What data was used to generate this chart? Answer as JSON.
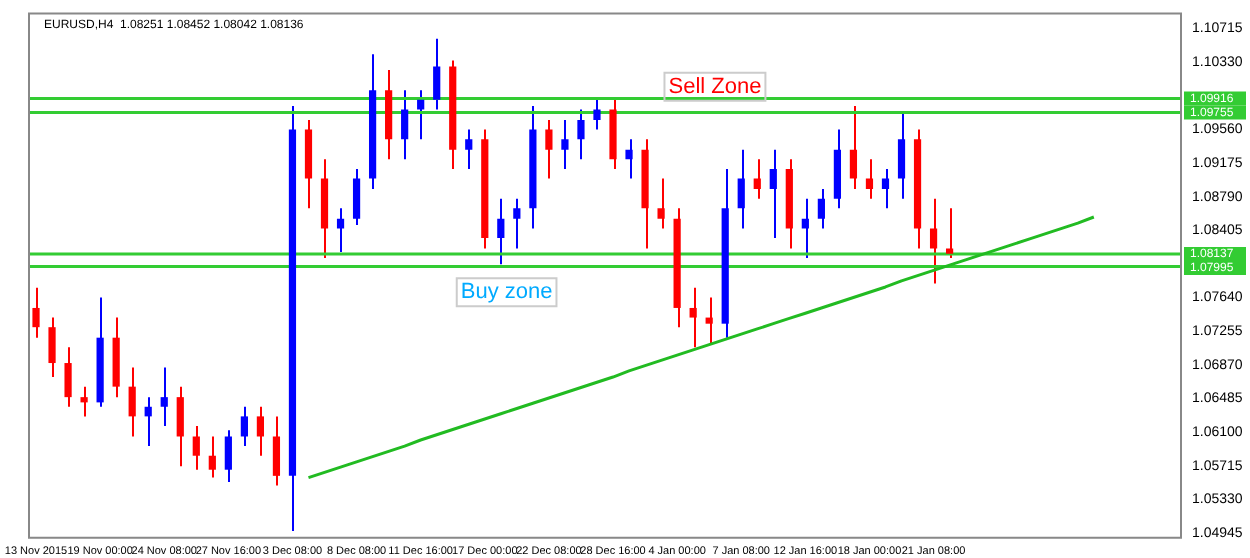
{
  "chart_data": {
    "type": "candlestick",
    "title": "EURUSD,H4  1.08251 1.08452 1.08042 1.08136",
    "categories": [
      "13 Nov 2015",
      null,
      null,
      null,
      "19 Nov 00:00",
      null,
      null,
      null,
      "24 Nov 08:00",
      null,
      null,
      null,
      "27 Nov 16:00",
      null,
      null,
      null,
      "3 Dec 08:00",
      null,
      null,
      null,
      "8 Dec 08:00",
      null,
      null,
      null,
      "11 Dec 16:00",
      null,
      null,
      null,
      "17 Dec 00:00",
      null,
      null,
      null,
      "22 Dec 08:00",
      null,
      null,
      null,
      "28 Dec 16:00",
      null,
      null,
      null,
      "4 Jan 00:00",
      null,
      null,
      null,
      "7 Jan 08:00",
      null,
      null,
      null,
      "12 Jan 16:00",
      null,
      null,
      null,
      "18 Jan 00:00",
      null,
      null,
      null,
      "21 Jan 08:00",
      null,
      null,
      null,
      null,
      null,
      null,
      null,
      null,
      null,
      null,
      null,
      null,
      null,
      null,
      null
    ],
    "series": [
      {
        "type": "candlestick",
        "ohlc": [
          [
            1.0752,
            1.0775,
            1.0718,
            1.073
          ],
          [
            1.073,
            1.0741,
            1.0673,
            1.0689
          ],
          [
            1.0689,
            1.0707,
            1.0639,
            1.065
          ],
          [
            1.065,
            1.0662,
            1.0628,
            1.0644
          ],
          [
            1.0644,
            1.0764,
            1.0639,
            1.0718
          ],
          [
            1.0718,
            1.0741,
            1.065,
            1.0662
          ],
          [
            1.0662,
            1.0684,
            1.0605,
            1.0628
          ],
          [
            1.0628,
            1.065,
            1.0594,
            1.0639
          ],
          [
            1.0639,
            1.0684,
            1.0617,
            1.065
          ],
          [
            1.065,
            1.0662,
            1.0571,
            1.0605
          ],
          [
            1.0605,
            1.0617,
            1.0567,
            1.0583
          ],
          [
            1.0583,
            1.0605,
            1.0558,
            1.0567
          ],
          [
            1.0567,
            1.0612,
            1.0553,
            1.0605
          ],
          [
            1.0605,
            1.0639,
            1.0594,
            1.0628
          ],
          [
            1.0628,
            1.0639,
            1.0583,
            1.0605
          ],
          [
            1.0605,
            1.0628,
            1.0549,
            1.056
          ],
          [
            1.056,
            1.0983,
            1.0497,
            1.0956
          ],
          [
            1.0956,
            1.0967,
            1.0866,
            1.09
          ],
          [
            1.09,
            1.0922,
            1.0809,
            1.0843
          ],
          [
            1.0843,
            1.0866,
            1.0816,
            1.0854
          ],
          [
            1.0854,
            1.0911,
            1.0847,
            1.09
          ],
          [
            1.09,
            1.1042,
            1.0888,
            1.1001
          ],
          [
            1.1001,
            1.1024,
            1.0922,
            1.0945
          ],
          [
            1.0945,
            1.1001,
            1.0922,
            1.0979
          ],
          [
            1.0979,
            1.1001,
            1.0945,
            1.099
          ],
          [
            1.099,
            1.106,
            1.0979,
            1.1028
          ],
          [
            1.1028,
            1.1035,
            1.0911,
            1.0933
          ],
          [
            1.0933,
            1.0956,
            1.0911,
            1.0945
          ],
          [
            1.0945,
            1.0956,
            1.082,
            1.0832
          ],
          [
            1.0832,
            1.0877,
            1.0802,
            1.0854
          ],
          [
            1.0854,
            1.0877,
            1.082,
            1.0866
          ],
          [
            1.0866,
            1.0983,
            1.0843,
            1.0956
          ],
          [
            1.0956,
            1.0967,
            1.09,
            1.0933
          ],
          [
            1.0933,
            1.0967,
            1.0911,
            1.0945
          ],
          [
            1.0945,
            1.0979,
            1.0922,
            1.0967
          ],
          [
            1.0967,
            1.099,
            1.0956,
            1.0979
          ],
          [
            1.0979,
            1.099,
            1.0911,
            1.0922
          ],
          [
            1.0922,
            1.0945,
            1.09,
            1.0933
          ],
          [
            1.0933,
            1.0945,
            1.082,
            1.0866
          ],
          [
            1.0866,
            1.09,
            1.0843,
            1.0854
          ],
          [
            1.0854,
            1.0866,
            1.073,
            1.0752
          ],
          [
            1.0752,
            1.0775,
            1.0707,
            1.0741
          ],
          [
            1.0741,
            1.0764,
            1.0712,
            1.0734
          ],
          [
            1.0734,
            1.0911,
            1.0718,
            1.0866
          ],
          [
            1.0866,
            1.0933,
            1.0843,
            1.09
          ],
          [
            1.09,
            1.0922,
            1.0877,
            1.0888
          ],
          [
            1.0888,
            1.0933,
            1.0832,
            1.0911
          ],
          [
            1.0911,
            1.0922,
            1.082,
            1.0843
          ],
          [
            1.0843,
            1.0877,
            1.0809,
            1.0854
          ],
          [
            1.0854,
            1.0888,
            1.0843,
            1.0877
          ],
          [
            1.0877,
            1.0956,
            1.0866,
            1.0933
          ],
          [
            1.0933,
            1.0983,
            1.0888,
            1.09
          ],
          [
            1.09,
            1.0922,
            1.0877,
            1.0888
          ],
          [
            1.0888,
            1.0911,
            1.0866,
            1.09
          ],
          [
            1.09,
            1.0974,
            1.0877,
            1.0945
          ],
          [
            1.0945,
            1.0956,
            1.082,
            1.0843
          ],
          [
            1.0843,
            1.0877,
            1.078,
            1.082
          ],
          [
            1.082,
            1.0866,
            1.0809,
            1.0814
          ],
          null,
          null,
          null,
          null,
          null,
          null,
          null,
          null,
          null,
          null,
          null,
          null,
          null,
          null
        ],
        "colors": [
          "#ff0000",
          "#ff0000",
          "#ff0000",
          "#ff0000",
          "#0000ff",
          "#ff0000",
          "#ff0000",
          "#0000ff",
          "#0000ff",
          "#ff0000",
          "#ff0000",
          "#ff0000",
          "#0000ff",
          "#0000ff",
          "#ff0000",
          "#ff0000",
          "#0000ff",
          "#ff0000",
          "#ff0000",
          "#0000ff",
          "#0000ff",
          "#0000ff",
          "#ff0000",
          "#0000ff",
          "#0000ff",
          "#0000ff",
          "#ff0000",
          "#0000ff",
          "#ff0000",
          "#0000ff",
          "#0000ff",
          "#0000ff",
          "#ff0000",
          "#0000ff",
          "#0000ff",
          "#0000ff",
          "#ff0000",
          "#0000ff",
          "#ff0000",
          "#ff0000",
          "#ff0000",
          "#ff0000",
          "#ff0000",
          "#0000ff",
          "#0000ff",
          "#ff0000",
          "#0000ff",
          "#ff0000",
          "#0000ff",
          "#0000ff",
          "#0000ff",
          "#ff0000",
          "#ff0000",
          "#0000ff",
          "#0000ff",
          "#ff0000",
          "#ff0000",
          "#ff0000",
          null,
          null,
          null,
          null,
          null,
          null,
          null,
          null,
          null,
          null,
          null,
          null,
          null,
          null
        ]
      },
      {
        "type": "line",
        "color": "#22bb22",
        "values": [
          null,
          null,
          null,
          null,
          null,
          null,
          null,
          null,
          null,
          null,
          null,
          null,
          null,
          null,
          null,
          null,
          null,
          1.0558,
          1.0564,
          1.057,
          1.0576,
          1.0582,
          1.0588,
          1.0594,
          1.0601,
          1.0607,
          1.0613,
          1.0619,
          1.0625,
          1.0631,
          1.0637,
          1.0643,
          1.0649,
          1.0655,
          1.0661,
          1.0667,
          1.0673,
          1.068,
          1.0686,
          1.0692,
          1.0698,
          1.0704,
          1.071,
          1.0716,
          1.0722,
          1.0728,
          1.0734,
          1.074,
          1.0746,
          1.0752,
          1.0758,
          1.0764,
          1.077,
          1.0776,
          1.0783,
          1.0789,
          1.0795,
          1.0801,
          1.0807,
          1.0813,
          1.0819,
          1.0825,
          1.0831,
          1.0837,
          1.0843,
          1.0849,
          1.0856,
          null,
          null,
          null,
          null,
          null
        ]
      }
    ],
    "ylim": [
      1.0488,
      1.109
    ],
    "yticks": [
      1.10715,
      {
        "value": 1.1033,
        "label": "1.10330"
      },
      {
        "value": 1.0956,
        "label": "1.09560"
      },
      1.09175,
      {
        "value": 1.0879,
        "label": "1.08790"
      },
      1.08405,
      {
        "value": 1.0764,
        "label": "1.07640"
      },
      1.07255,
      {
        "value": 1.0687,
        "label": "1.06870"
      },
      1.06485,
      {
        "value": 1.061,
        "label": "1.06100"
      },
      1.05715,
      {
        "value": 1.0533,
        "label": "1.05330"
      },
      1.04945
    ],
    "ref_lines": [
      {
        "axis": "y",
        "value": 1.09916,
        "label": "1.09916",
        "color": "#33cc33"
      },
      {
        "axis": "y",
        "value": 1.09755,
        "label": "1.09755",
        "color": "#33cc33"
      },
      {
        "axis": "y",
        "value": 1.08137,
        "label": "1.08137",
        "color": "#33cc33"
      },
      {
        "axis": "y",
        "value": 1.07995,
        "label": "1.07995",
        "color": "#33cc33"
      }
    ],
    "annotations": [
      "Sell Zone",
      "Buy zone"
    ],
    "grid": false,
    "legend": false
  }
}
